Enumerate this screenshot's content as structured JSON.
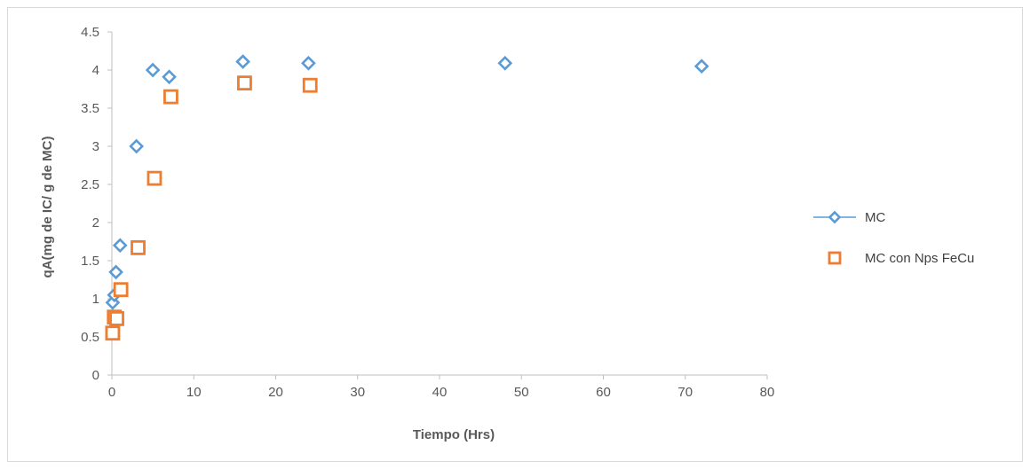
{
  "chart_data": {
    "type": "scatter",
    "title": "",
    "xlabel": "Tiempo (Hrs)",
    "ylabel": "qA(mg de IC/ g de MC)",
    "xlim": [
      0,
      80
    ],
    "ylim": [
      0,
      4.5
    ],
    "x_ticks": [
      "0",
      "10",
      "20",
      "30",
      "40",
      "50",
      "60",
      "70",
      "80"
    ],
    "y_ticks": [
      "0",
      "0.5",
      "1",
      "1.5",
      "2",
      "2.5",
      "3",
      "3.5",
      "4",
      "4.5"
    ],
    "grid": false,
    "legend_position": "right",
    "series": [
      {
        "name": "MC",
        "marker": "diamond",
        "color": "#5b9bd5",
        "points": [
          {
            "x": 0.1,
            "y": 0.95
          },
          {
            "x": 0.3,
            "y": 1.05
          },
          {
            "x": 0.5,
            "y": 1.35
          },
          {
            "x": 1,
            "y": 1.7
          },
          {
            "x": 3,
            "y": 3.0
          },
          {
            "x": 5,
            "y": 4.0
          },
          {
            "x": 7,
            "y": 3.91
          },
          {
            "x": 16,
            "y": 4.11
          },
          {
            "x": 24,
            "y": 4.09
          },
          {
            "x": 48,
            "y": 4.09
          },
          {
            "x": 72,
            "y": 4.05
          }
        ]
      },
      {
        "name": "MC con Nps FeCu",
        "marker": "square",
        "color": "#ed7d31",
        "points": [
          {
            "x": 0.1,
            "y": 0.55
          },
          {
            "x": 0.3,
            "y": 0.76
          },
          {
            "x": 0.6,
            "y": 0.74
          },
          {
            "x": 1.1,
            "y": 1.12
          },
          {
            "x": 3.2,
            "y": 1.67
          },
          {
            "x": 5.2,
            "y": 2.58
          },
          {
            "x": 7.2,
            "y": 3.65
          },
          {
            "x": 16.2,
            "y": 3.83
          },
          {
            "x": 24.2,
            "y": 3.8
          }
        ]
      }
    ]
  }
}
